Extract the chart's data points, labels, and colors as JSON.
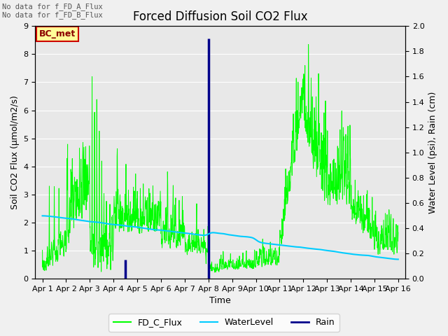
{
  "title": "Forced Diffusion Soil CO2 Flux",
  "xlabel": "Time",
  "ylabel_left": "Soil CO2 Flux (μmol/m2/s)",
  "ylabel_right": "Water Level (psi), Rain (cm)",
  "text_no_data_A": "No data for f_FD_A_Flux",
  "text_no_data_B": "No data for f_FD_B_Flux",
  "annotation_box": "BC_met",
  "xtick_labels": [
    "Apr 1",
    "Apr 2",
    "Apr 3",
    "Apr 4",
    "Apr 5",
    "Apr 6",
    "Apr 7",
    "Apr 8",
    "Apr 9",
    "Apr 10",
    "Apr 11",
    "Apr 12",
    "Apr 13",
    "Apr 14",
    "Apr 15",
    "Apr 16"
  ],
  "ylim_left": [
    0.0,
    9.0
  ],
  "ylim_right": [
    0.0,
    2.0
  ],
  "yticks_left": [
    0.0,
    1.0,
    2.0,
    3.0,
    4.0,
    5.0,
    6.0,
    7.0,
    8.0,
    9.0
  ],
  "yticks_right": [
    0.0,
    0.2,
    0.4,
    0.6,
    0.8,
    1.0,
    1.2,
    1.4,
    1.6,
    1.8,
    2.0
  ],
  "color_flux": "#00ff00",
  "color_water": "#00ccff",
  "color_rain": "#00008b",
  "background_color": "#e8e8e8",
  "plot_bg_color": "#e8e8e8",
  "grid_color": "#ffffff",
  "legend_labels": [
    "FD_C_Flux",
    "WaterLevel",
    "Rain"
  ],
  "title_fontsize": 12,
  "axis_fontsize": 9,
  "tick_fontsize": 8,
  "figsize": [
    6.4,
    4.8
  ],
  "dpi": 100
}
